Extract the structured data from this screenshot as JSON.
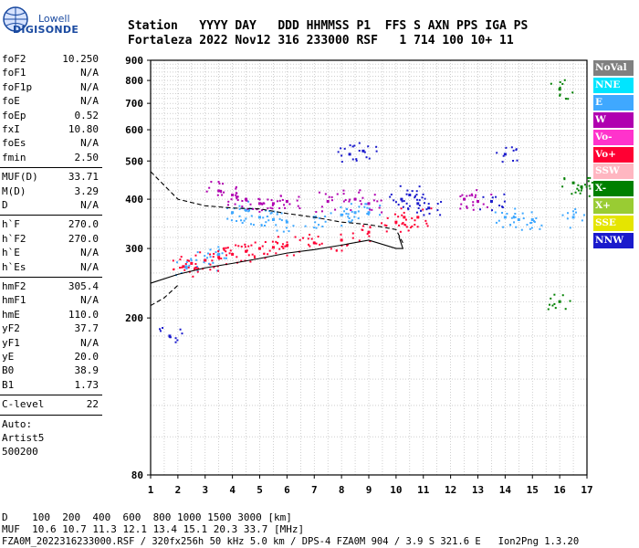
{
  "logo": {
    "line1": "Lowell",
    "line2": "DIGISONDE"
  },
  "header": {
    "line1": "Station   YYYY DAY   DDD HHMMSS P1  FFS S AXN PPS IGA PS",
    "line2": "Fortaleza 2022 Nov12 316 233000 RSF   1 714 100 10+ 11"
  },
  "params_group1": [
    {
      "key": "foF2",
      "value": "10.250"
    },
    {
      "key": "foF1",
      "value": "N/A"
    },
    {
      "key": "foF1p",
      "value": "N/A"
    },
    {
      "key": "foE",
      "value": "N/A"
    },
    {
      "key": "foEp",
      "value": "0.52"
    },
    {
      "key": "fxI",
      "value": "10.80"
    },
    {
      "key": "foEs",
      "value": "N/A"
    },
    {
      "key": "fmin",
      "value": "2.50"
    }
  ],
  "params_group2": [
    {
      "key": "MUF(D)",
      "value": "33.71"
    },
    {
      "key": "M(D)",
      "value": "3.29"
    },
    {
      "key": "D",
      "value": "N/A"
    }
  ],
  "params_group3": [
    {
      "key": "h`F",
      "value": "270.0"
    },
    {
      "key": "h`F2",
      "value": "270.0"
    },
    {
      "key": "h`E",
      "value": "N/A"
    },
    {
      "key": "h`Es",
      "value": "N/A"
    }
  ],
  "params_group4": [
    {
      "key": "hmF2",
      "value": "305.4"
    },
    {
      "key": "hmF1",
      "value": "N/A"
    },
    {
      "key": "hmE",
      "value": "110.0"
    },
    {
      "key": "yF2",
      "value": "37.7"
    },
    {
      "key": "yF1",
      "value": "N/A"
    },
    {
      "key": "yE",
      "value": "20.0"
    },
    {
      "key": "B0",
      "value": "38.9"
    },
    {
      "key": "B1",
      "value": "1.73"
    }
  ],
  "clevel": {
    "key": "C-level",
    "value": "22"
  },
  "auto": {
    "line1": "Auto:",
    "line2": "Artist5",
    "line3": "500200"
  },
  "legend": [
    {
      "label": "NoVal",
      "color": "#808080"
    },
    {
      "label": "NNE",
      "color": "#00e5ff"
    },
    {
      "label": "E",
      "color": "#3fa8ff"
    },
    {
      "label": "W",
      "color": "#b000b0"
    },
    {
      "label": "Vo-",
      "color": "#ff33cc"
    },
    {
      "label": "Vo+",
      "color": "#ff0033"
    },
    {
      "label": "SSW",
      "color": "#ffb6c1"
    },
    {
      "label": "X-",
      "color": "#008000"
    },
    {
      "label": "X+",
      "color": "#99cc33"
    },
    {
      "label": "SSE",
      "color": "#e5e500"
    },
    {
      "label": "NNW",
      "color": "#1a1acc"
    }
  ],
  "footer": {
    "line1": "D    100  200  400  600  800 1000 1500 3000 [km]",
    "line2": "MUF  10.6 10.7 11.3 12.1 13.4 15.1 20.3 33.7 [MHz]",
    "line3": "FZA0M_2022316233000.RSF / 320fx256h 50 kHz 5.0 km / DPS-4 FZA0M 904 / 3.9 S 321.6 E   Ion2Png 1.3.20"
  },
  "chart_data": {
    "type": "scatter",
    "x_ticks": [
      "1",
      "2",
      "3",
      "4",
      "5",
      "6",
      "7",
      "8",
      "9",
      "10",
      "11",
      "12",
      "13",
      "14",
      "15",
      "16",
      "17"
    ],
    "y_ticks": [
      "80",
      "200",
      "300",
      "400",
      "500",
      "600",
      "700",
      "800",
      "900"
    ],
    "xlim": [
      1,
      17
    ],
    "ylim": [
      80,
      900
    ],
    "y_scale": "log",
    "grid": "dotted",
    "series": [
      {
        "legend_label": "E",
        "x": [
          2.3,
          3.0,
          3.5,
          4.0,
          4.5,
          5.0,
          5.5,
          6.0,
          7.0,
          8.0,
          8.5,
          9.0,
          14.0,
          14.5,
          15.0,
          16.5
        ],
        "y": [
          270,
          280,
          290,
          370,
          375,
          360,
          355,
          350,
          360,
          365,
          370,
          370,
          360,
          355,
          355,
          360
        ]
      },
      {
        "legend_label": "W",
        "x": [
          3.5,
          4.0,
          4.5,
          5.0,
          5.5,
          6.0,
          7.5,
          8.5,
          9.0,
          12.5,
          13.0
        ],
        "y": [
          420,
          410,
          400,
          390,
          390,
          395,
          395,
          400,
          390,
          400,
          395
        ]
      },
      {
        "legend_label": "Vo+",
        "x": [
          2.2,
          2.5,
          3.0,
          3.5,
          4.0,
          4.5,
          5.0,
          5.5,
          6.0,
          7.0,
          8.0,
          9.0,
          10.0,
          10.3,
          10.8
        ],
        "y": [
          270,
          275,
          280,
          285,
          290,
          295,
          300,
          302,
          305,
          310,
          315,
          330,
          350,
          360,
          360
        ]
      },
      {
        "legend_label": "NNW",
        "x": [
          10.2,
          10.5,
          10.8,
          11.2,
          13.5,
          14.0,
          8.3,
          8.8,
          1.7
        ],
        "y": [
          400,
          410,
          390,
          380,
          395,
          520,
          520,
          530,
          180
        ]
      },
      {
        "legend_label": "X-",
        "x": [
          16.0,
          16.8,
          16.5,
          16.0
        ],
        "y": [
          760,
          430,
          440,
          220
        ]
      }
    ],
    "curves": [
      {
        "style": "solid",
        "x": [
          1.0,
          2.0,
          3.0,
          4.0,
          5.0,
          6.0,
          7.0,
          8.0,
          9.0,
          10.0,
          10.25,
          10.1
        ],
        "y": [
          245,
          258,
          268,
          275,
          283,
          292,
          298,
          306,
          315,
          300,
          300,
          322
        ]
      },
      {
        "style": "dashed",
        "x": [
          1.0,
          2.0,
          3.0,
          4.0,
          5.0,
          6.0,
          7.0,
          8.0,
          9.0,
          10.0,
          10.25
        ],
        "y": [
          470,
          400,
          385,
          380,
          378,
          368,
          360,
          350,
          345,
          335,
          310
        ]
      },
      {
        "style": "dashed-lower",
        "x": [
          1.0,
          1.5,
          2.0
        ],
        "y": [
          215,
          225,
          242
        ]
      }
    ]
  }
}
